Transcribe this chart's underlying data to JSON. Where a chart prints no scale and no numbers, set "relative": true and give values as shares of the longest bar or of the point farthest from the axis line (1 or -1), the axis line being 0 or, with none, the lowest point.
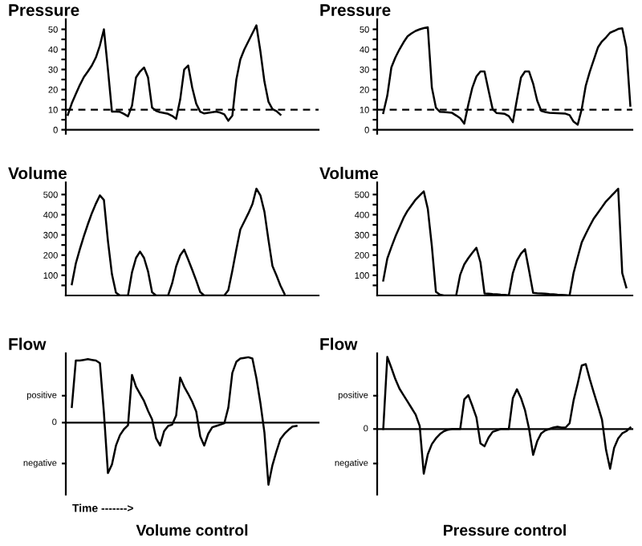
{
  "chart_data": [
    {
      "type": "line",
      "title": "Pressure",
      "categories": [
        null,
        null,
        null,
        null,
        null,
        null,
        null,
        null,
        null,
        null,
        null,
        null,
        null,
        null,
        null,
        null,
        null,
        null,
        null,
        null,
        null,
        null,
        null,
        null,
        null,
        null,
        null,
        null,
        null,
        null,
        null,
        null,
        null,
        null,
        null,
        null,
        null,
        null,
        null,
        null,
        null,
        null,
        null,
        null,
        null,
        null,
        null,
        null,
        null,
        null,
        null,
        null,
        null,
        null,
        null,
        null,
        null,
        null,
        null,
        null,
        null,
        null,
        null
      ],
      "ylim": [
        -2,
        55
      ],
      "yticks": [
        0,
        {
          "value": 5,
          "label": null
        },
        10,
        {
          "value": 15,
          "label": null
        },
        20,
        {
          "value": 25,
          "label": null
        },
        30,
        {
          "value": 35,
          "label": null
        },
        40,
        {
          "value": 45,
          "label": null
        },
        50
      ],
      "grid": false,
      "ref_lines": [
        {
          "axis": "y",
          "value": 10,
          "color": "#000000",
          "line_style": "dashed"
        }
      ],
      "series": [
        {
          "color": "#000000",
          "values": [
            7.4,
            13.2,
            17.8,
            22.3,
            26.2,
            29,
            32,
            36,
            42,
            50,
            30,
            9,
            9,
            8.9,
            7.9,
            6.7,
            12,
            26,
            29,
            31,
            26,
            11,
            9.4,
            8.7,
            8.3,
            7.9,
            6.9,
            5.4,
            15,
            30,
            32,
            21,
            13,
            9,
            8.1,
            8.4,
            8.7,
            9,
            8.5,
            7.7,
            4.5,
            7,
            25,
            35,
            40,
            44,
            48,
            52,
            39,
            24,
            14,
            10.3,
            9.3,
            7.5,
            null,
            null,
            null,
            null,
            null,
            null,
            null,
            null,
            null
          ]
        }
      ]
    },
    {
      "type": "line",
      "title": "Pressure",
      "categories": [
        null,
        null,
        null,
        null,
        null,
        null,
        null,
        null,
        null,
        null,
        null,
        null,
        null,
        null,
        null,
        null,
        null,
        null,
        null,
        null,
        null,
        null,
        null,
        null,
        null,
        null,
        null,
        null,
        null,
        null,
        null,
        null,
        null,
        null,
        null,
        null,
        null,
        null,
        null,
        null,
        null,
        null,
        null,
        null,
        null,
        null,
        null,
        null,
        null,
        null,
        null,
        null,
        null,
        null,
        null,
        null,
        null,
        null,
        null,
        null,
        null,
        null,
        null
      ],
      "ylim": [
        -2,
        55
      ],
      "yticks": [
        0,
        {
          "value": 5,
          "label": null
        },
        10,
        {
          "value": 15,
          "label": null
        },
        20,
        {
          "value": 25,
          "label": null
        },
        30,
        {
          "value": 35,
          "label": null
        },
        40,
        {
          "value": 45,
          "label": null
        },
        50
      ],
      "grid": false,
      "ref_lines": [
        {
          "axis": "y",
          "value": 10,
          "color": "#000000",
          "line_style": "dashed"
        }
      ],
      "series": [
        {
          "color": "#000000",
          "values": [
            null,
            8.3,
            17,
            31,
            36,
            40,
            43.5,
            46.5,
            48,
            49.2,
            50,
            50.6,
            51,
            21,
            11,
            8.9,
            8.8,
            8.6,
            8.4,
            7.1,
            5.7,
            3,
            12.5,
            21,
            26.5,
            29,
            29,
            19.5,
            10.3,
            8.3,
            8.1,
            7.9,
            6.8,
            3.8,
            15,
            26,
            29,
            29,
            23,
            14.5,
            9.4,
            8.8,
            8.4,
            8.3,
            8.2,
            8.1,
            8,
            7.3,
            4,
            2.5,
            10.3,
            22,
            29,
            35,
            41,
            44,
            46,
            48.3,
            49.2,
            50.2,
            50.5,
            41,
            12
          ]
        }
      ]
    },
    {
      "type": "line",
      "title": "Volume",
      "categories": [
        null,
        null,
        null,
        null,
        null,
        null,
        null,
        null,
        null,
        null,
        null,
        null,
        null,
        null,
        null,
        null,
        null,
        null,
        null,
        null,
        null,
        null,
        null,
        null,
        null,
        null,
        null,
        null,
        null,
        null,
        null,
        null,
        null,
        null,
        null,
        null,
        null,
        null,
        null,
        null,
        null,
        null,
        null,
        null,
        null,
        null,
        null,
        null,
        null,
        null,
        null,
        null,
        null,
        null,
        null,
        null,
        null,
        null,
        null,
        null,
        null,
        null,
        null
      ],
      "ylim": [
        0,
        560
      ],
      "yticks": [
        {
          "value": 50,
          "label": null
        },
        100,
        {
          "value": 150,
          "label": null
        },
        200,
        {
          "value": 250,
          "label": null
        },
        300,
        {
          "value": 350,
          "label": null
        },
        400,
        {
          "value": 450,
          "label": null
        },
        500
      ],
      "grid": false,
      "series": [
        {
          "color": "#000000",
          "values": [
            null,
            56,
            159,
            229,
            294,
            353,
            408,
            455,
            496,
            473,
            270,
            105,
            14,
            0,
            0,
            0,
            115,
            186,
            217,
            186,
            119,
            16,
            0,
            0,
            0,
            0,
            60,
            144,
            199,
            227,
            178,
            127,
            74,
            17,
            0,
            0,
            0,
            0,
            0,
            0,
            26,
            122,
            228,
            327,
            367,
            407,
            452,
            529,
            496,
            415,
            276,
            146,
            99,
            49,
            8,
            null,
            null,
            null,
            null,
            null,
            null,
            null,
            null
          ]
        }
      ]
    },
    {
      "type": "line",
      "title": "Volume",
      "categories": [
        null,
        null,
        null,
        null,
        null,
        null,
        null,
        null,
        null,
        null,
        null,
        null,
        null,
        null,
        null,
        null,
        null,
        null,
        null,
        null,
        null,
        null,
        null,
        null,
        null,
        null,
        null,
        null,
        null,
        null,
        null,
        null,
        null,
        null,
        null,
        null,
        null,
        null,
        null,
        null,
        null,
        null,
        null,
        null,
        null,
        null,
        null,
        null,
        null,
        null,
        null,
        null,
        null,
        null,
        null,
        null,
        null,
        null,
        null,
        null,
        null,
        null,
        null
      ],
      "ylim": [
        0,
        560
      ],
      "yticks": [
        {
          "value": 50,
          "label": null
        },
        100,
        {
          "value": 150,
          "label": null
        },
        200,
        {
          "value": 250,
          "label": null
        },
        300,
        {
          "value": 350,
          "label": null
        },
        400,
        {
          "value": 450,
          "label": null
        },
        500
      ],
      "grid": false,
      "series": [
        {
          "color": "#000000",
          "values": [
            null,
            74,
            183,
            239,
            292,
            338,
            384,
            420,
            447,
            475,
            496,
            516,
            429,
            244,
            18,
            4,
            0,
            0,
            0,
            0,
            103,
            154,
            185,
            212,
            236,
            164,
            10,
            9,
            7,
            6,
            4,
            3,
            1,
            111,
            173,
            207,
            229,
            123,
            13,
            11,
            10,
            9,
            7,
            6,
            4,
            3,
            2,
            0,
            113,
            190,
            263,
            305,
            345,
            382,
            410,
            438,
            466,
            487,
            508,
            529,
            111,
            40,
            null
          ]
        }
      ]
    },
    {
      "type": "line",
      "title": "Flow",
      "categories": [
        null,
        null,
        null,
        null,
        null,
        null,
        null,
        null,
        null,
        null,
        null,
        null,
        null,
        null,
        null,
        null,
        null,
        null,
        null,
        null,
        null,
        null,
        null,
        null,
        null,
        null,
        null,
        null,
        null,
        null,
        null,
        null,
        null,
        null,
        null,
        null,
        null,
        null,
        null,
        null,
        null,
        null,
        null,
        null,
        null,
        null,
        null,
        null,
        null,
        null,
        null,
        null,
        null,
        null,
        null,
        null,
        null,
        null,
        null,
        null,
        null,
        null,
        null
      ],
      "relative": true,
      "ylim": [
        -1.1,
        1.06
      ],
      "grid": false,
      "annotations": [
        "positive",
        "0",
        "negative",
        "Time ------->",
        "Volume control"
      ],
      "series": [
        {
          "color": "#000000",
          "values": [
            null,
            0.24,
            0.95,
            0.95,
            0.96,
            0.97,
            0.96,
            0.95,
            0.91,
            0.15,
            -0.77,
            -0.64,
            -0.35,
            -0.19,
            -0.1,
            -0.04,
            0.73,
            0.55,
            0.44,
            0.33,
            0.18,
            0.05,
            -0.24,
            -0.35,
            -0.13,
            -0.05,
            -0.03,
            0.11,
            0.69,
            0.55,
            0.44,
            0.32,
            0.17,
            -0.21,
            -0.35,
            -0.17,
            -0.07,
            -0.05,
            -0.03,
            -0.01,
            0.23,
            0.76,
            0.93,
            0.98,
            0.99,
            1,
            0.98,
            0.68,
            0.3,
            -0.15,
            -0.95,
            -0.65,
            -0.44,
            -0.25,
            -0.17,
            -0.11,
            -0.06,
            -0.05,
            null,
            null,
            null,
            null,
            null
          ]
        }
      ]
    },
    {
      "type": "line",
      "title": "Flow",
      "categories": [
        null,
        null,
        null,
        null,
        null,
        null,
        null,
        null,
        null,
        null,
        null,
        null,
        null,
        null,
        null,
        null,
        null,
        null,
        null,
        null,
        null,
        null,
        null,
        null,
        null,
        null,
        null,
        null,
        null,
        null,
        null,
        null,
        null,
        null,
        null,
        null,
        null,
        null,
        null,
        null,
        null,
        null,
        null,
        null,
        null,
        null,
        null,
        null,
        null,
        null,
        null,
        null,
        null,
        null,
        null,
        null,
        null,
        null,
        null,
        null,
        null,
        null,
        null
      ],
      "relative": true,
      "ylim": [
        -0.91,
        1.05
      ],
      "grid": false,
      "annotations": [
        "positive",
        "0",
        "negative",
        "Pressure control"
      ],
      "series": [
        {
          "color": "#000000",
          "values": [
            null,
            0,
            1,
            0.85,
            0.69,
            0.56,
            0.47,
            0.38,
            0.29,
            0.2,
            0.04,
            -0.62,
            -0.35,
            -0.21,
            -0.13,
            -0.07,
            -0.03,
            -0.01,
            0,
            0,
            0,
            0.41,
            0.47,
            0.32,
            0.16,
            -0.2,
            -0.24,
            -0.12,
            -0.04,
            -0.02,
            0,
            0,
            0,
            0.43,
            0.55,
            0.43,
            0.26,
            0,
            -0.36,
            -0.17,
            -0.06,
            -0.02,
            0,
            0.02,
            0.03,
            0.02,
            0.02,
            0.08,
            0.4,
            0.63,
            0.88,
            0.9,
            0.69,
            0.5,
            0.32,
            0.13,
            -0.29,
            -0.55,
            -0.26,
            -0.13,
            -0.06,
            -0.03,
            0.02
          ]
        }
      ]
    }
  ]
}
